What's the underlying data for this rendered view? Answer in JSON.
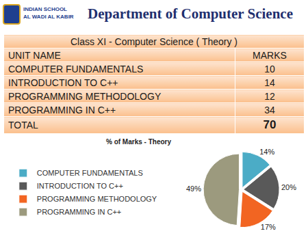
{
  "header": {
    "logo_lines": [
      "INDIAN SCHOOL",
      "AL WADI AL KABIR"
    ],
    "title": "Department of Computer Science"
  },
  "table": {
    "caption": "Class XI - Computer Science ( Theory )",
    "columns": [
      "UNIT NAME",
      "MARKS"
    ],
    "rows": [
      [
        "COMPUTER FUNDAMENTALS",
        10
      ],
      [
        "INTRODUCTION TO C++",
        14
      ],
      [
        "PROGRAMMING METHODOLOGY",
        12
      ],
      [
        "PROGRAMMING IN C++",
        34
      ]
    ],
    "total": [
      "TOTAL",
      70
    ]
  },
  "chart_data": {
    "type": "pie",
    "title": "% of Marks - Theory",
    "categories": [
      "COMPUTER FUNDAMENTALS",
      "INTRODUCTION TO C++",
      "PROGRAMMING METHODOLOGY",
      "PROGRAMMING IN C++"
    ],
    "values": [
      14,
      20,
      17,
      49
    ],
    "value_labels": [
      "14%",
      "20%",
      "17%",
      "49%"
    ],
    "colors": [
      "#4bacc6",
      "#595959",
      "#f26522",
      "#9c9a7e"
    ],
    "data_labels": true,
    "legend": "left"
  }
}
